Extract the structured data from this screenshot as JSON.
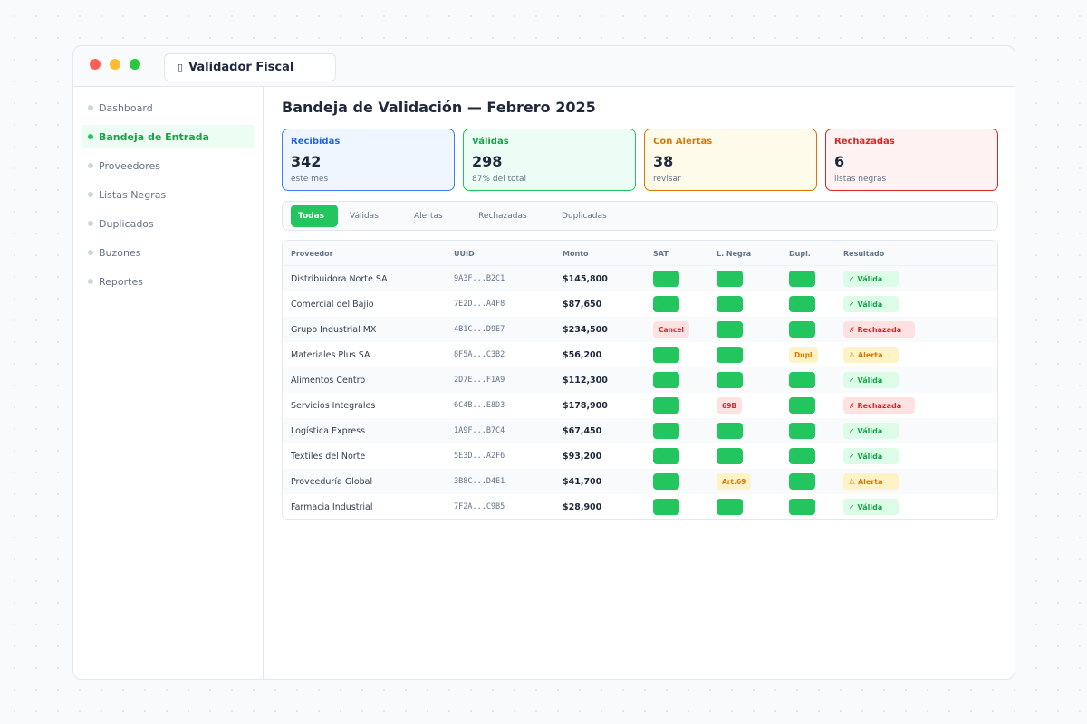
{
  "app": {
    "title": "Validador Fiscal",
    "icon": "document-icon"
  },
  "sidebar": {
    "items": [
      {
        "label": "Dashboard",
        "active": false
      },
      {
        "label": "Bandeja de Entrada",
        "active": true
      },
      {
        "label": "Proveedores",
        "active": false
      },
      {
        "label": "Listas Negras",
        "active": false
      },
      {
        "label": "Duplicados",
        "active": false
      },
      {
        "label": "Buzones",
        "active": false
      },
      {
        "label": "Reportes",
        "active": false
      }
    ]
  },
  "main": {
    "title": "Bandeja de Validación — Febrero 2025",
    "cards": [
      {
        "label": "Recibidas",
        "value": "342",
        "sub": "este mes",
        "color": "#3b82f6"
      },
      {
        "label": "Válidas",
        "value": "298",
        "sub": "87% del total",
        "color": "#22c55e"
      },
      {
        "label": "Con Alertas",
        "value": "38",
        "sub": "revisar",
        "color": "#d97706"
      },
      {
        "label": "Rechazadas",
        "value": "6",
        "sub": "listas negras",
        "color": "#dc2626"
      }
    ],
    "filters": [
      {
        "label": "Todas",
        "active": true
      },
      {
        "label": "Válidas",
        "active": false
      },
      {
        "label": "Alertas",
        "active": false
      },
      {
        "label": "Rechazadas",
        "active": false
      },
      {
        "label": "Duplicadas",
        "active": false
      }
    ],
    "table": {
      "headers": [
        "Proveedor",
        "UUID",
        "Monto",
        "SAT",
        "L. Negra",
        "Dupl.",
        "Resultado"
      ],
      "rows": [
        {
          "proveedor": "Distribuidora Norte SA",
          "uuid": "9A3F...B2C1",
          "monto": "$145,800",
          "sat": "",
          "lnegra": "",
          "dupl": "",
          "resultado": "✓ Válida",
          "status": "valid"
        },
        {
          "proveedor": "Comercial del Bajío",
          "uuid": "7E2D...A4F8",
          "monto": "$87,650",
          "sat": "",
          "lnegra": "",
          "dupl": "",
          "resultado": "✓ Válida",
          "status": "valid"
        },
        {
          "proveedor": "Grupo Industrial MX",
          "uuid": "4B1C...D9E7",
          "monto": "$234,500",
          "sat": "Cancel",
          "lnegra": "",
          "dupl": "",
          "resultado": "✗ Rechazada",
          "status": "reject"
        },
        {
          "proveedor": "Materiales Plus SA",
          "uuid": "8F5A...C3B2",
          "monto": "$56,200",
          "sat": "",
          "lnegra": "",
          "dupl": "Dupl",
          "resultado": "⚠ Alerta",
          "status": "alert"
        },
        {
          "proveedor": "Alimentos Centro",
          "uuid": "2D7E...F1A9",
          "monto": "$112,300",
          "sat": "",
          "lnegra": "",
          "dupl": "",
          "resultado": "✓ Válida",
          "status": "valid"
        },
        {
          "proveedor": "Servicios Integrales",
          "uuid": "6C4B...E8D3",
          "monto": "$178,900",
          "sat": "",
          "lnegra": "69B",
          "dupl": "",
          "resultado": "✗ Rechazada",
          "status": "reject"
        },
        {
          "proveedor": "Logística Express",
          "uuid": "1A9F...B7C4",
          "monto": "$67,450",
          "sat": "",
          "lnegra": "",
          "dupl": "",
          "resultado": "✓ Válida",
          "status": "valid"
        },
        {
          "proveedor": "Textiles del Norte",
          "uuid": "5E3D...A2F6",
          "monto": "$93,200",
          "sat": "",
          "lnegra": "",
          "dupl": "",
          "resultado": "✓ Válida",
          "status": "valid"
        },
        {
          "proveedor": "Proveeduría Global",
          "uuid": "3B8C...D4E1",
          "monto": "$41,700",
          "sat": "",
          "lnegra": "Art.69",
          "dupl": "",
          "resultado": "⚠ Alerta",
          "status": "alert"
        },
        {
          "proveedor": "Farmacia Industrial",
          "uuid": "7F2A...C9B5",
          "monto": "$28,900",
          "sat": "",
          "lnegra": "",
          "dupl": "",
          "resultado": "✓ Válida",
          "status": "valid"
        }
      ]
    }
  }
}
